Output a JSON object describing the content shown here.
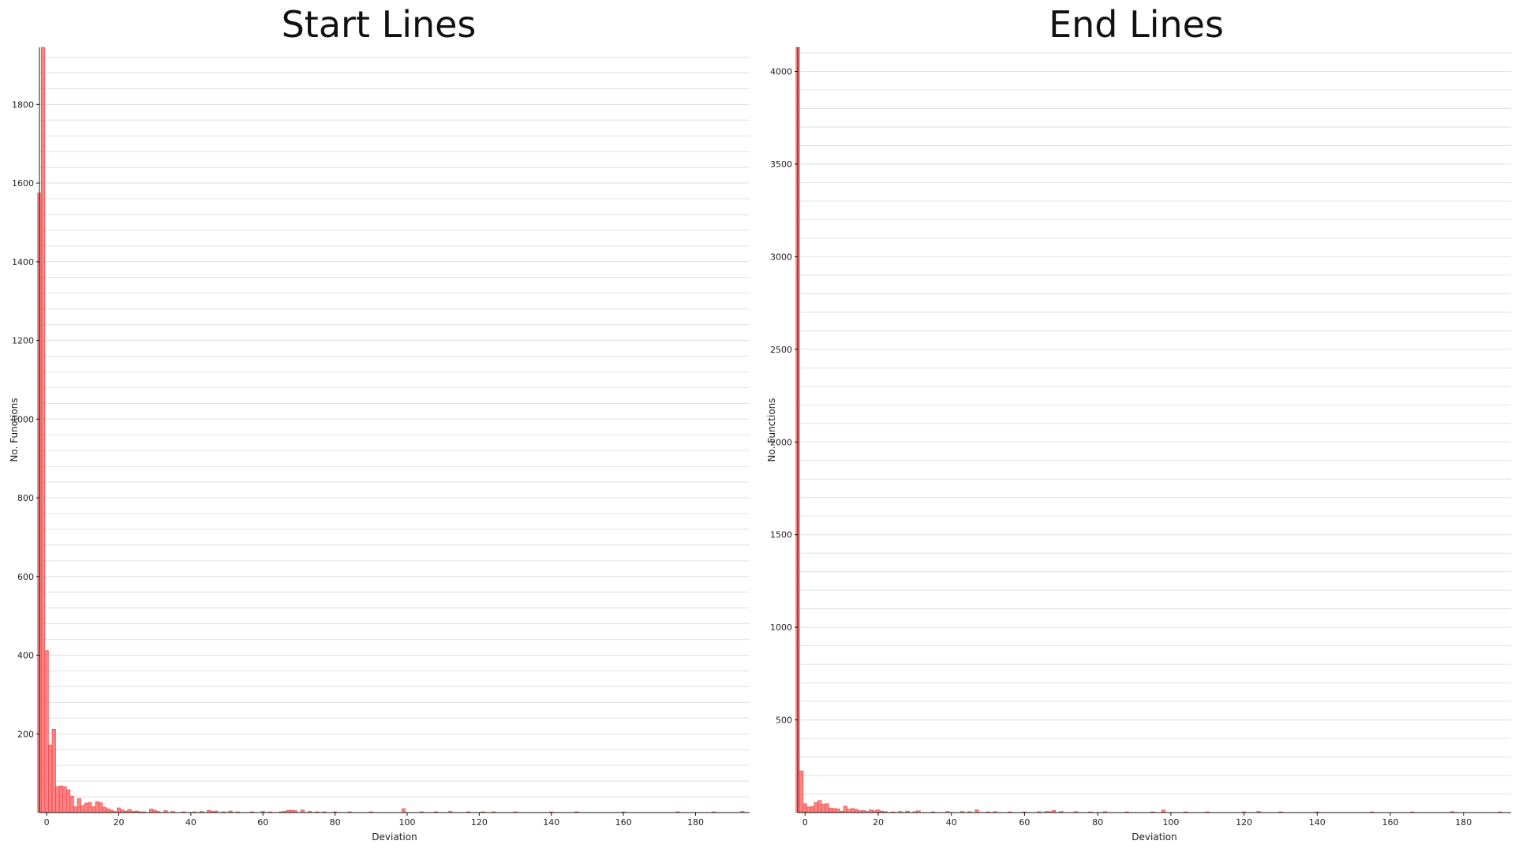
{
  "chart_data": [
    {
      "type": "bar",
      "title": "Start Lines",
      "xlabel": "Deviation",
      "ylabel": "No. Functions",
      "xlim": [
        -2,
        195
      ],
      "ylim": [
        0,
        1945
      ],
      "xticks": [
        0,
        20,
        40,
        60,
        80,
        100,
        120,
        140,
        160,
        180
      ],
      "yticks": [
        200,
        400,
        600,
        800,
        1000,
        1200,
        1400,
        1600,
        1800
      ],
      "grid": true,
      "bin_width": 1,
      "color": "#ff6b6b",
      "x": [
        -2,
        -1,
        0,
        1,
        2,
        3,
        4,
        5,
        6,
        7,
        8,
        9,
        10,
        11,
        12,
        13,
        14,
        15,
        16,
        17,
        18,
        19,
        20,
        21,
        22,
        23,
        24,
        25,
        26,
        27,
        29,
        30,
        31,
        33,
        35,
        38,
        41,
        43,
        45,
        46,
        47,
        49,
        51,
        53,
        57,
        60,
        62,
        65,
        66,
        67,
        68,
        69,
        71,
        73,
        75,
        77,
        80,
        84,
        90,
        99,
        104,
        108,
        112,
        117,
        121,
        124,
        130,
        140,
        147,
        160,
        175,
        185,
        193
      ],
      "values": [
        1575,
        1945,
        412,
        172,
        212,
        66,
        68,
        66,
        58,
        42,
        15,
        36,
        18,
        24,
        26,
        15,
        28,
        25,
        14,
        10,
        6,
        3,
        12,
        7,
        4,
        8,
        3,
        4,
        2,
        2,
        9,
        6,
        3,
        5,
        3,
        2,
        2,
        3,
        6,
        3,
        4,
        2,
        4,
        2,
        2,
        3,
        2,
        2,
        3,
        6,
        6,
        5,
        7,
        3,
        2,
        2,
        2,
        2,
        2,
        10,
        2,
        2,
        3,
        2,
        2,
        2,
        2,
        2,
        2,
        2,
        2,
        2,
        3
      ]
    },
    {
      "type": "bar",
      "title": "End Lines",
      "xlabel": "Deviation",
      "ylabel": "No. Functions",
      "xlim": [
        -2,
        193
      ],
      "ylim": [
        0,
        4130
      ],
      "xticks": [
        0,
        20,
        40,
        60,
        80,
        100,
        120,
        140,
        160,
        180
      ],
      "yticks": [
        500,
        1000,
        1500,
        2000,
        2500,
        3000,
        3500,
        4000
      ],
      "grid": true,
      "bin_width": 1,
      "color": "#ff6b6b",
      "x": [
        -2,
        -1,
        0,
        1,
        2,
        3,
        4,
        5,
        6,
        7,
        8,
        9,
        10,
        11,
        12,
        13,
        14,
        15,
        16,
        17,
        18,
        19,
        20,
        21,
        22,
        24,
        26,
        28,
        30,
        31,
        35,
        39,
        43,
        45,
        47,
        50,
        52,
        56,
        60,
        64,
        66,
        67,
        68,
        70,
        74,
        78,
        82,
        88,
        95,
        98,
        104,
        110,
        120,
        124,
        130,
        140,
        155,
        166,
        177,
        190
      ],
      "values": [
        4130,
        225,
        48,
        30,
        32,
        55,
        65,
        45,
        48,
        25,
        22,
        20,
        8,
        35,
        18,
        22,
        18,
        10,
        12,
        6,
        15,
        10,
        15,
        8,
        5,
        4,
        6,
        8,
        5,
        10,
        4,
        6,
        6,
        5,
        15,
        4,
        5,
        4,
        4,
        5,
        6,
        5,
        12,
        6,
        5,
        4,
        5,
        4,
        4,
        14,
        4,
        4,
        4,
        6,
        4,
        4,
        4,
        4,
        5,
        4
      ]
    }
  ]
}
